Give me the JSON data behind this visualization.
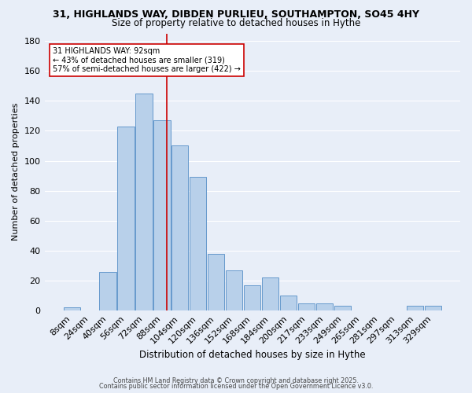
{
  "title_line1": "31, HIGHLANDS WAY, DIBDEN PURLIEU, SOUTHAMPTON, SO45 4HY",
  "title_line2": "Size of property relative to detached houses in Hythe",
  "xlabel": "Distribution of detached houses by size in Hythe",
  "ylabel": "Number of detached properties",
  "bar_labels": [
    "8sqm",
    "24sqm",
    "40sqm",
    "56sqm",
    "72sqm",
    "88sqm",
    "104sqm",
    "120sqm",
    "136sqm",
    "152sqm",
    "168sqm",
    "184sqm",
    "200sqm",
    "217sqm",
    "233sqm",
    "249sqm",
    "265sqm",
    "281sqm",
    "297sqm",
    "313sqm",
    "329sqm"
  ],
  "bar_values": [
    2,
    0,
    26,
    123,
    145,
    127,
    110,
    89,
    38,
    27,
    17,
    22,
    10,
    5,
    5,
    3,
    0,
    0,
    0,
    3,
    3
  ],
  "bar_color": "#b8d0ea",
  "bar_edge_color": "#6699cc",
  "bg_color": "#e8eef8",
  "grid_color": "#ffffff",
  "vline_color": "#cc0000",
  "annotation_line1": "31 HIGHLANDS WAY: 92sqm",
  "annotation_line2": "← 43% of detached houses are smaller (319)",
  "annotation_line3": "57% of semi-detached houses are larger (422) →",
  "annotation_box_color": "#ffffff",
  "annotation_box_edge": "#cc0000",
  "footer_line1": "Contains HM Land Registry data © Crown copyright and database right 2025.",
  "footer_line2": "Contains public sector information licensed under the Open Government Licence v3.0.",
  "ylim": [
    0,
    185
  ],
  "yticks": [
    0,
    20,
    40,
    60,
    80,
    100,
    120,
    140,
    160,
    180
  ]
}
